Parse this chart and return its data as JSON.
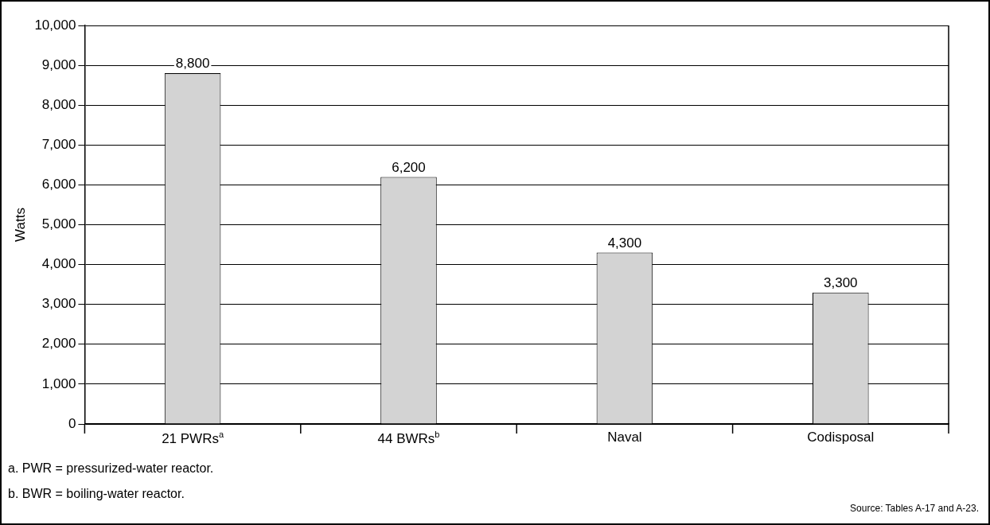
{
  "chart_data": {
    "type": "bar",
    "ylabel": "Watts",
    "categories": [
      "21 PWRs$^{a}$",
      "44 BWRs$^{b}$",
      "Naval",
      "Codisposal"
    ],
    "values": [
      8800,
      6200,
      4300,
      3300
    ],
    "color": "#d3d3d3",
    "ylim": [
      0,
      10000
    ],
    "yticks": [
      {
        "value": 0,
        "label": "0"
      },
      {
        "value": 1000,
        "label": "1,000"
      },
      {
        "value": 2000,
        "label": "2,000"
      },
      {
        "value": 3000,
        "label": "3,000"
      },
      {
        "value": 4000,
        "label": "4,000"
      },
      {
        "value": 5000,
        "label": "5,000"
      },
      {
        "value": 6000,
        "label": "6,000"
      },
      {
        "value": 7000,
        "label": "7,000"
      },
      {
        "value": 8000,
        "label": "8,000"
      },
      {
        "value": 9000,
        "label": "9,000"
      },
      {
        "value": 10000,
        "label": "10,000"
      }
    ],
    "value_labels": [
      "8,800",
      "6,200",
      "4,300",
      "3,300"
    ],
    "grid": "y",
    "legend": false,
    "annotations": [
      "a.  PWR = pressurized-water reactor.",
      "b.  BWR = boiling-water reactor.",
      "Source:  Tables A-17 and A-23."
    ]
  }
}
